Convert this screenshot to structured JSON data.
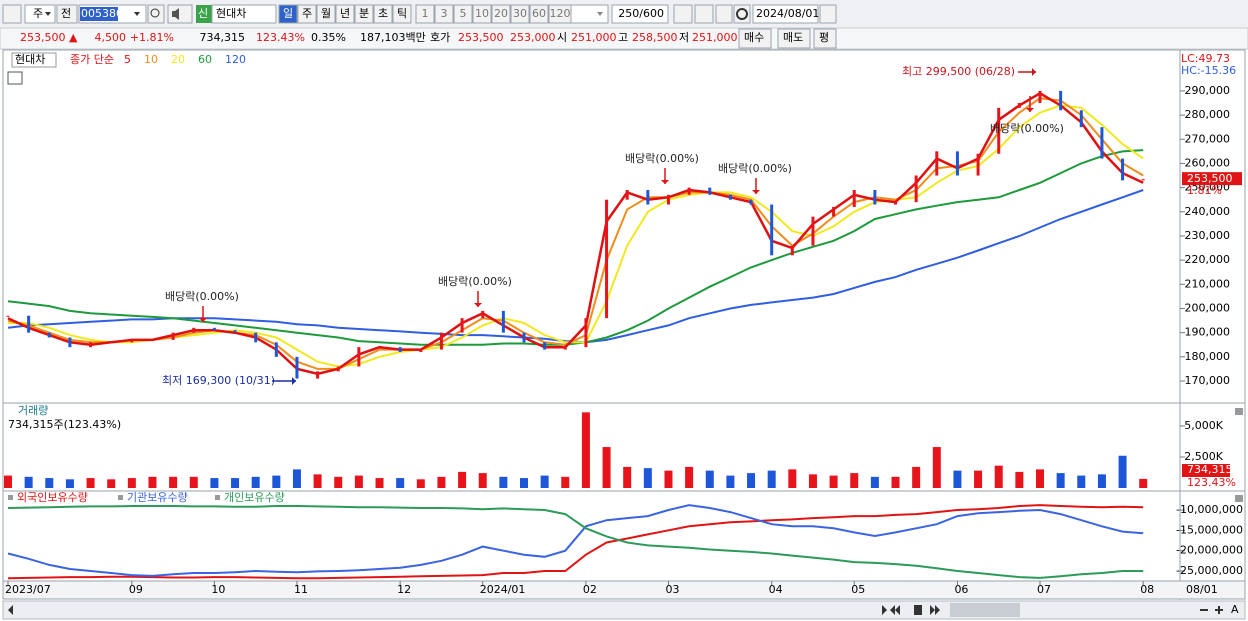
{
  "toolbar": {
    "market": "주",
    "prev": "전",
    "code": "005380",
    "name": "현대차",
    "periods": [
      "일",
      "주",
      "월",
      "년",
      "분",
      "초",
      "틱"
    ],
    "intervals": [
      "1",
      "3",
      "5",
      "10",
      "20",
      "30",
      "60",
      "120"
    ],
    "count": "250/600",
    "date": "2024/08/01"
  },
  "quote": {
    "price": "253,500 ▲",
    "change": "4,500",
    "rate": "+1.81%",
    "volume": "734,315",
    "volume_rate": "123.43%",
    "turnover": "0.35%",
    "amount": "187,103백만",
    "ask_label": "호가",
    "ask": "253,500",
    "bid": "253,000",
    "open_label": "시",
    "open": "251,000",
    "high_label": "고",
    "high": "258,500",
    "low_label": "저",
    "low": "251,000",
    "buy": "매수",
    "sell": "매도",
    "avg": "평"
  },
  "chart_data": [
    {
      "type": "price",
      "title": "현대차",
      "ma_label": "종가 단순",
      "categories": [
        "2023/07",
        null,
        null,
        null,
        null,
        null,
        "09",
        null,
        null,
        null,
        "10",
        null,
        null,
        null,
        "11",
        null,
        null,
        null,
        null,
        "12",
        null,
        null,
        null,
        "2024/01",
        null,
        null,
        null,
        null,
        "02",
        null,
        null,
        null,
        "03",
        null,
        null,
        null,
        null,
        "04",
        null,
        null,
        null,
        "05",
        null,
        null,
        null,
        null,
        "06",
        null,
        null,
        null,
        "07",
        null,
        null,
        null,
        null,
        "08"
      ],
      "x_end_label": "08/01",
      "values": [
        197000,
        190000,
        188000,
        184000,
        186000,
        186000,
        187000,
        187000,
        190000,
        192000,
        191000,
        190000,
        186000,
        180000,
        171000,
        174000,
        176000,
        184000,
        184000,
        182000,
        183000,
        190000,
        196000,
        199000,
        190000,
        186000,
        183000,
        184000,
        196000,
        245000,
        249000,
        243000,
        247000,
        250000,
        247000,
        245000,
        243000,
        222000,
        226000,
        238000,
        242000,
        249000,
        243000,
        244000,
        255000,
        265000,
        255000,
        264000,
        283000,
        285000,
        290000,
        282000,
        275000,
        262000,
        253000,
        253500
      ],
      "up_color": "#e8141c",
      "down_color": "#1d57d8",
      "series": [
        {
          "name": "5",
          "color": "#e01010",
          "values": [
            196000,
            192000,
            189000,
            186000,
            185000,
            186000,
            187000,
            187000,
            189000,
            191000,
            191000,
            190000,
            188000,
            183000,
            175000,
            173000,
            175000,
            181000,
            184000,
            183000,
            183000,
            188000,
            194000,
            198000,
            193000,
            188000,
            184000,
            184000,
            193000,
            236000,
            248000,
            245000,
            246000,
            249000,
            248000,
            246000,
            244000,
            228000,
            225000,
            235000,
            241000,
            247000,
            245000,
            244000,
            252000,
            262000,
            258000,
            262000,
            278000,
            284000,
            289000,
            284000,
            277000,
            265000,
            256000,
            252000
          ]
        },
        {
          "name": "10",
          "color": "#f08c1c",
          "values": [
            195000,
            193000,
            190000,
            187000,
            186000,
            186000,
            187000,
            187000,
            188000,
            190000,
            191000,
            190000,
            189000,
            185000,
            178000,
            175000,
            175000,
            179000,
            183000,
            183000,
            183000,
            186000,
            191000,
            196000,
            195000,
            190000,
            186000,
            185000,
            189000,
            220000,
            241000,
            246000,
            246000,
            248000,
            248000,
            247000,
            245000,
            234000,
            226000,
            231000,
            238000,
            244000,
            246000,
            245000,
            249000,
            258000,
            259000,
            261000,
            273000,
            281000,
            287000,
            286000,
            280000,
            270000,
            260000,
            255000
          ]
        },
        {
          "name": "20",
          "color": "#f2e81e",
          "values": [
            194000,
            194000,
            192000,
            189000,
            187000,
            186000,
            186000,
            187000,
            188000,
            189000,
            190000,
            191000,
            190000,
            188000,
            183000,
            178000,
            176000,
            177000,
            180000,
            182000,
            183000,
            184000,
            188000,
            193000,
            196000,
            194000,
            189000,
            186000,
            186000,
            203000,
            226000,
            240000,
            245000,
            247000,
            248000,
            248000,
            246000,
            240000,
            232000,
            230000,
            234000,
            240000,
            244000,
            245000,
            246000,
            252000,
            257000,
            259000,
            266000,
            275000,
            281000,
            284000,
            283000,
            276000,
            268000,
            262000
          ]
        },
        {
          "name": "60",
          "color": "#1e9a3c",
          "values": [
            203000,
            202000,
            201000,
            199000,
            198000,
            197500,
            197000,
            196500,
            196000,
            195000,
            194000,
            193000,
            192000,
            191000,
            190000,
            189000,
            188000,
            186500,
            186000,
            185500,
            185000,
            185000,
            185000,
            185000,
            185500,
            185500,
            185000,
            185000,
            186000,
            188000,
            191000,
            195000,
            200000,
            204500,
            209000,
            213000,
            217000,
            220000,
            223000,
            225500,
            228000,
            232000,
            237000,
            239000,
            241000,
            242500,
            244000,
            245000,
            246000,
            249000,
            252000,
            256000,
            260000,
            263000,
            265000,
            265500
          ]
        },
        {
          "name": "120",
          "color": "#2f5fe0",
          "values": [
            192000,
            193000,
            193500,
            194000,
            194500,
            195000,
            195500,
            195500,
            196000,
            196000,
            196000,
            195500,
            195000,
            194500,
            193500,
            193000,
            192000,
            191500,
            191000,
            190500,
            190000,
            189500,
            189000,
            189000,
            188500,
            188000,
            187500,
            186500,
            186000,
            187000,
            189000,
            191000,
            193000,
            196000,
            198000,
            200000,
            201500,
            202500,
            203500,
            204500,
            206000,
            208500,
            211000,
            213000,
            216000,
            218500,
            221000,
            224000,
            227000,
            230000,
            233500,
            237000,
            240000,
            243000,
            246000,
            249000
          ]
        }
      ],
      "ylim": [
        160900,
        306100
      ],
      "yticks": [
        {
          "value": 170000,
          "label": "170,000"
        },
        {
          "value": 180000,
          "label": "180,000"
        },
        {
          "value": 190000,
          "label": "190,000"
        },
        {
          "value": 200000,
          "label": "200,000"
        },
        {
          "value": 210000,
          "label": "210,000"
        },
        {
          "value": 220000,
          "label": "220,000"
        },
        {
          "value": 230000,
          "label": "230,000"
        },
        {
          "value": 240000,
          "label": "240,000"
        },
        {
          "value": 250000,
          "label": "250,000"
        },
        {
          "value": 260000,
          "label": "260,000"
        },
        {
          "value": 270000,
          "label": "270,000"
        },
        {
          "value": 280000,
          "label": "280,000"
        },
        {
          "value": 290000,
          "label": "290,000"
        }
      ],
      "grid": false,
      "right_labels": [
        "LC:49.73",
        "HC:-15.36"
      ],
      "last_price": "253,500",
      "last_rate": "1.81%",
      "annotations": [
        "최고 299,500 (06/28)",
        "최저 169,300 (10/31)",
        "배당락(0.00%)",
        "배당락(0.00%)",
        "배당락(0.00%)",
        "배당락(0.00%)",
        "배당락(0.00%)"
      ]
    },
    {
      "type": "bar",
      "title": "거래량",
      "subtitle": "734,315주(123.43%)",
      "values": [
        1000000,
        900000,
        800000,
        700000,
        800000,
        700000,
        800000,
        900000,
        900000,
        900000,
        800000,
        800000,
        900000,
        1000000,
        1500000,
        1100000,
        900000,
        1000000,
        800000,
        800000,
        700000,
        900000,
        1300000,
        1200000,
        900000,
        800000,
        1000000,
        900000,
        6100000,
        3300000,
        1700000,
        1600000,
        1400000,
        1700000,
        1400000,
        1000000,
        1200000,
        1400000,
        1500000,
        1100000,
        1000000,
        1200000,
        900000,
        900000,
        1700000,
        3300000,
        1400000,
        1400000,
        1800000,
        1300000,
        1500000,
        1200000,
        1000000,
        1100000,
        2600000,
        734315
      ],
      "ylim": [
        0,
        6690000
      ],
      "yticks": [
        {
          "value": 2500000,
          "label": "2,500K"
        },
        {
          "value": 5000000,
          "label": "5,000K"
        }
      ],
      "last_label": "734,315",
      "last_rate": "123.43%"
    },
    {
      "type": "line",
      "series": [
        {
          "name": "외국인보유수량",
          "color": "#e01414",
          "values": [
            -26800000,
            -26700000,
            -26600000,
            -26500000,
            -26500000,
            -26400000,
            -26400000,
            -26500000,
            -26600000,
            -26600000,
            -26500000,
            -26500000,
            -26600000,
            -26700000,
            -26800000,
            -26800000,
            -26700000,
            -26600000,
            -26500000,
            -26400000,
            -26300000,
            -26200000,
            -26100000,
            -26000000,
            -25500000,
            -25500000,
            -25000000,
            -25000000,
            -21000000,
            -18000000,
            -17000000,
            -16000000,
            -15000000,
            -14000000,
            -13500000,
            -13000000,
            -12800000,
            -12500000,
            -12300000,
            -12000000,
            -11800000,
            -11500000,
            -11500000,
            -11200000,
            -11000000,
            -10500000,
            -10000000,
            -9800000,
            -9500000,
            -9000000,
            -8800000,
            -9000000,
            -9200000,
            -9300000,
            -9200000,
            -9300000
          ]
        },
        {
          "name": "기관보유수량",
          "color": "#3a64e0",
          "values": [
            -20700000,
            -22000000,
            -23500000,
            -24500000,
            -25000000,
            -25500000,
            -26000000,
            -26200000,
            -25800000,
            -25500000,
            -25500000,
            -25300000,
            -25000000,
            -25200000,
            -25300000,
            -25100000,
            -25000000,
            -24800000,
            -24500000,
            -24200000,
            -23500000,
            -22500000,
            -21000000,
            -19000000,
            -20000000,
            -21000000,
            -21500000,
            -20000000,
            -14000000,
            -12500000,
            -12000000,
            -11500000,
            -10000000,
            -8800000,
            -9500000,
            -10500000,
            -12000000,
            -13500000,
            -14000000,
            -14000000,
            -14500000,
            -15500000,
            -16400000,
            -15500000,
            -14500000,
            -13500000,
            -11500000,
            -10800000,
            -10500000,
            -10200000,
            -10000000,
            -11000000,
            -12500000,
            -14000000,
            -15300000,
            -15700000
          ]
        },
        {
          "name": "개인보유수량",
          "color": "#2e9a5a",
          "values": [
            -9500000,
            -9400000,
            -9300000,
            -9200000,
            -9100000,
            -9100000,
            -9000000,
            -9000000,
            -9000000,
            -9100000,
            -9100000,
            -9200000,
            -9200000,
            -9000000,
            -9000000,
            -9100000,
            -9200000,
            -9300000,
            -9300000,
            -9400000,
            -9500000,
            -9500000,
            -9600000,
            -9800000,
            -9600000,
            -9800000,
            -10000000,
            -11000000,
            -14500000,
            -16500000,
            -18000000,
            -18700000,
            -19000000,
            -19300000,
            -19700000,
            -20000000,
            -20300000,
            -20700000,
            -21200000,
            -21700000,
            -22200000,
            -22800000,
            -23000000,
            -23300000,
            -23700000,
            -24300000,
            -25000000,
            -25500000,
            -26000000,
            -26500000,
            -26700000,
            -26300000,
            -25800000,
            -25500000,
            -25000000,
            -25000000
          ]
        }
      ],
      "ylim": [
        -27460000,
        -6060000
      ],
      "yticks": [
        {
          "value": -10000000,
          "label": "-10,000,000"
        },
        {
          "value": -15000000,
          "label": "-15,000,000"
        },
        {
          "value": -20000000,
          "label": "-20,000,000"
        },
        {
          "value": -25000000,
          "label": "-25,000,000"
        }
      ]
    }
  ]
}
